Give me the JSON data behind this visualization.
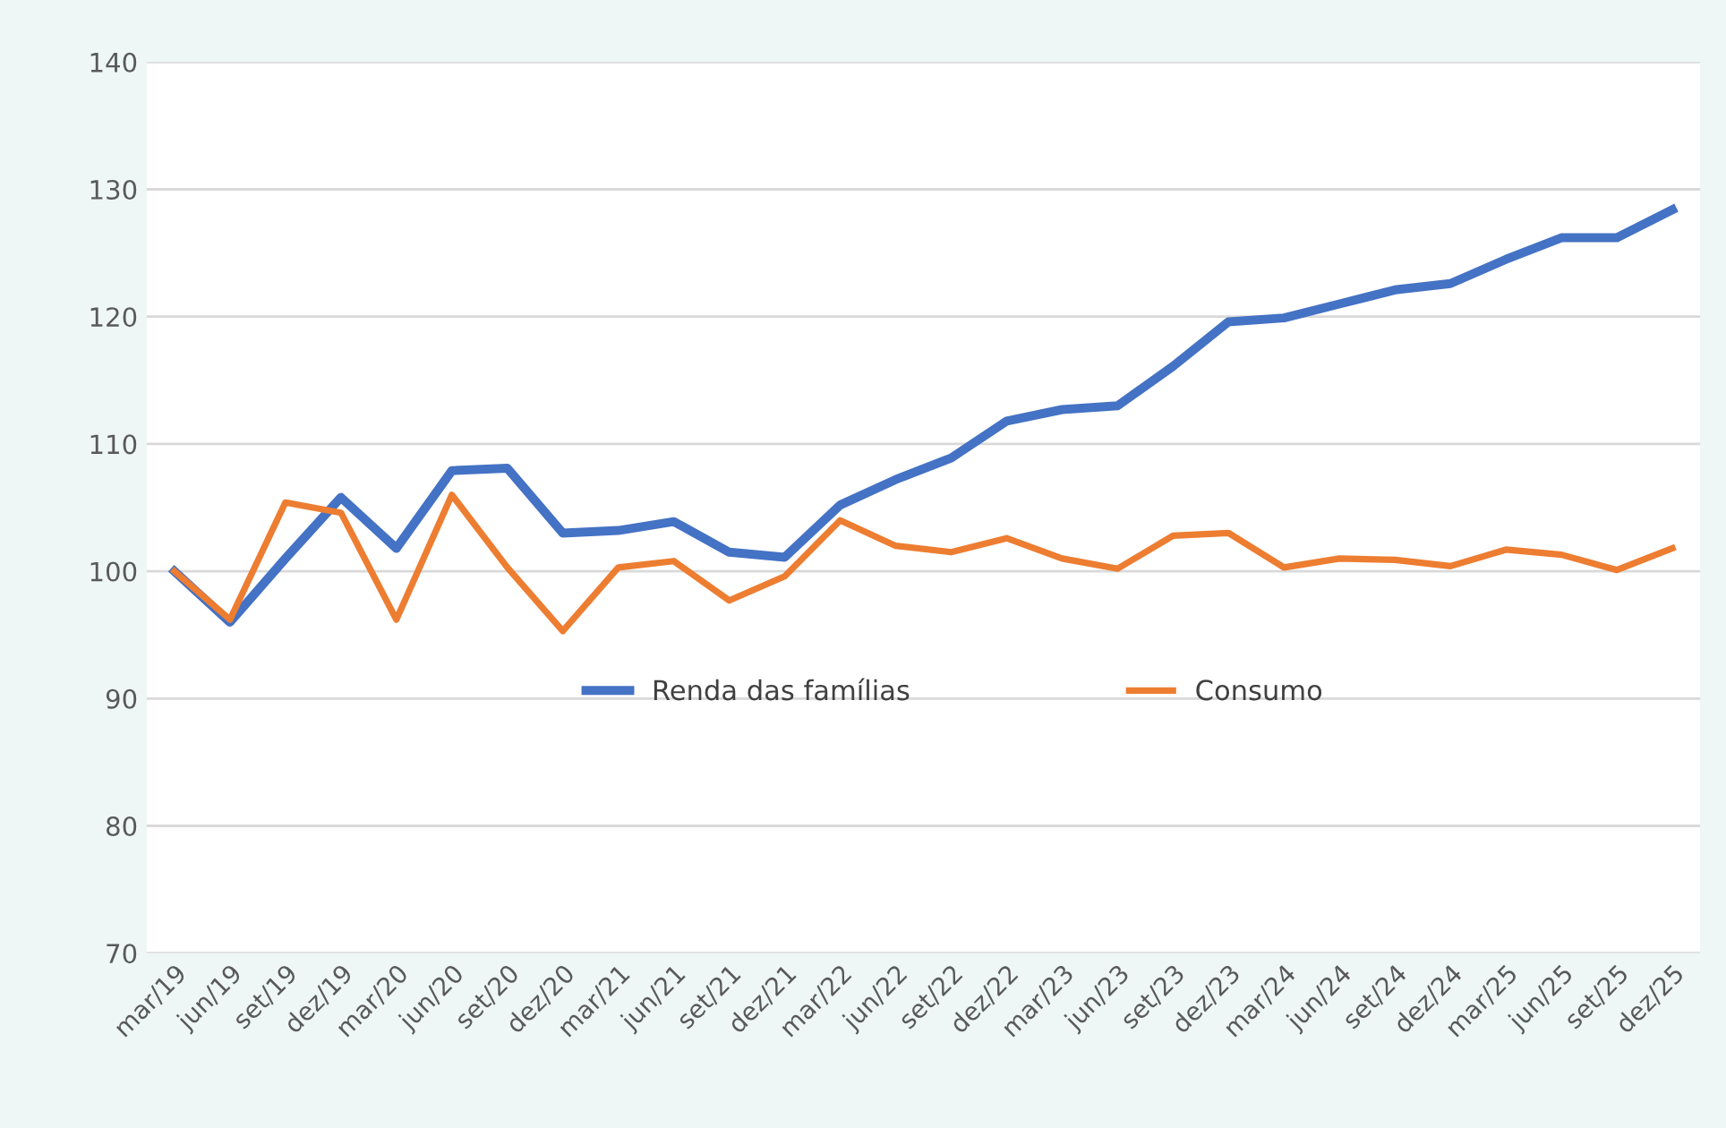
{
  "chart_data": {
    "type": "line",
    "categories": [
      "mar/19",
      "jun/19",
      "set/19",
      "dez/19",
      "mar/20",
      "jun/20",
      "set/20",
      "dez/20",
      "mar/21",
      "jun/21",
      "set/21",
      "dez/21",
      "mar/22",
      "jun/22",
      "set/22",
      "dez/22",
      "mar/23",
      "jun/23",
      "set/23",
      "dez/23",
      "mar/24",
      "jun/24",
      "set/24",
      "dez/24",
      "mar/25",
      "jun/25",
      "set/25",
      "dez/25"
    ],
    "series": [
      {
        "name": "Renda das famílias",
        "color": "#4472c4",
        "values": [
          100,
          96,
          101,
          105.8,
          101.8,
          107.9,
          108.1,
          103,
          103.2,
          103.9,
          101.5,
          101.1,
          105.2,
          107.2,
          108.9,
          111.8,
          112.7,
          113.0,
          116.1,
          119.6,
          119.9,
          121.0,
          122.1,
          122.6,
          124.5,
          126.2,
          126.2,
          128.4
        ]
      },
      {
        "name": "Consumo",
        "color": "#ed7d31",
        "values": [
          100,
          96.2,
          105.4,
          104.6,
          96.2,
          106,
          100.3,
          95.3,
          100.3,
          100.8,
          97.7,
          99.6,
          104,
          102,
          101.5,
          102.6,
          101,
          100.2,
          102.8,
          103,
          100.3,
          101,
          100.9,
          100.4,
          101.7,
          101.3,
          100.1,
          101.8
        ]
      }
    ],
    "ylim": [
      70,
      140
    ],
    "yticks": [
      70,
      80,
      90,
      100,
      110,
      120,
      130,
      140
    ],
    "grid": "y",
    "legend": "bottom",
    "marker": "none",
    "line_style": "solid"
  }
}
